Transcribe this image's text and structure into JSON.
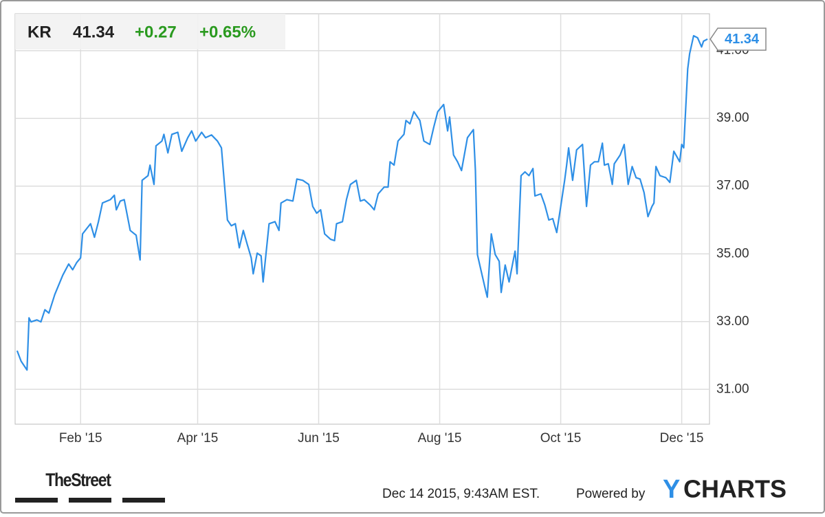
{
  "quote": {
    "symbol": "KR",
    "price": "41.34",
    "change": "+0.27",
    "change_pct": "+0.65%"
  },
  "chart_data": {
    "type": "line",
    "x": [
      0,
      2,
      5,
      6,
      7,
      10,
      12,
      14,
      16,
      19,
      23,
      26,
      28,
      30,
      32,
      33,
      37,
      39,
      41,
      43,
      47,
      49,
      50,
      52,
      54,
      57,
      60,
      62,
      63,
      66,
      67,
      69,
      70,
      73,
      74,
      76,
      78,
      81,
      83,
      86,
      88,
      90,
      93,
      95,
      98,
      101,
      103,
      106,
      108,
      110,
      112,
      114,
      116,
      118,
      119,
      121,
      123,
      124,
      127,
      130,
      132,
      133,
      136,
      139,
      141,
      144,
      147,
      149,
      151,
      153,
      155,
      158,
      160,
      161,
      164,
      166,
      168,
      171,
      173,
      175,
      178,
      180,
      182,
      185,
      187,
      188,
      190,
      192,
      195,
      196,
      198,
      200,
      203,
      205,
      208,
      210,
      212,
      215,
      217,
      218,
      220,
      222,
      224,
      227,
      230,
      231,
      232,
      234,
      236,
      237,
      239,
      241,
      243,
      244,
      246,
      248,
      250,
      251,
      252,
      254,
      256,
      258,
      260,
      261,
      264,
      266,
      268,
      270,
      272,
      274,
      276,
      277,
      278,
      280,
      282,
      285,
      287,
      289,
      291,
      293,
      295,
      296,
      298,
      300,
      301,
      304,
      306,
      308,
      310,
      312,
      314,
      316,
      318,
      320,
      321,
      322,
      324,
      327,
      329,
      331,
      334,
      335,
      336,
      338,
      339,
      341,
      343,
      345,
      346,
      348
    ],
    "values": [
      32.14,
      31.83,
      31.57,
      33.11,
      32.99,
      33.05,
      32.99,
      33.35,
      33.25,
      33.8,
      34.37,
      34.7,
      34.53,
      34.74,
      34.88,
      35.59,
      35.89,
      35.49,
      35.95,
      36.5,
      36.6,
      36.73,
      36.3,
      36.56,
      36.6,
      35.69,
      35.55,
      34.82,
      37.17,
      37.31,
      37.62,
      37.05,
      38.19,
      38.33,
      38.53,
      37.98,
      38.53,
      38.59,
      38.03,
      38.43,
      38.63,
      38.33,
      38.59,
      38.43,
      38.51,
      38.33,
      38.13,
      36.0,
      35.83,
      35.89,
      35.18,
      35.69,
      35.28,
      34.88,
      34.41,
      35.02,
      34.94,
      34.17,
      35.89,
      35.95,
      35.69,
      36.5,
      36.6,
      36.56,
      37.21,
      37.17,
      37.05,
      36.4,
      36.2,
      36.3,
      35.59,
      35.43,
      35.39,
      35.89,
      35.95,
      36.6,
      37.05,
      37.17,
      36.56,
      36.6,
      36.44,
      36.3,
      36.77,
      36.97,
      36.97,
      37.72,
      37.62,
      38.33,
      38.53,
      38.94,
      38.84,
      39.2,
      38.94,
      38.33,
      38.23,
      38.74,
      39.2,
      39.41,
      38.63,
      39.04,
      37.92,
      37.72,
      37.46,
      38.43,
      38.67,
      37.46,
      34.98,
      34.47,
      33.96,
      33.72,
      35.59,
      34.98,
      34.78,
      33.86,
      34.67,
      34.17,
      34.78,
      35.08,
      34.41,
      37.31,
      37.42,
      37.31,
      37.52,
      36.71,
      36.77,
      36.44,
      36.0,
      36.04,
      35.63,
      36.4,
      37.17,
      37.62,
      38.13,
      37.17,
      38.07,
      38.23,
      36.4,
      37.62,
      37.72,
      37.72,
      38.27,
      37.62,
      37.66,
      37.05,
      37.66,
      37.92,
      38.23,
      37.05,
      37.58,
      37.25,
      37.21,
      36.81,
      36.1,
      36.4,
      36.5,
      37.58,
      37.31,
      37.25,
      37.11,
      38.03,
      37.72,
      38.23,
      38.13,
      40.46,
      40.91,
      41.44,
      41.38,
      41.11,
      41.28,
      41.34
    ],
    "color": "#2e8fe6",
    "xlim": [
      -1,
      349
    ],
    "xticks": [
      {
        "value": 32,
        "label": "Feb '15"
      },
      {
        "value": 91,
        "label": "Apr '15"
      },
      {
        "value": 152,
        "label": "Jun '15"
      },
      {
        "value": 213,
        "label": "Aug '15"
      },
      {
        "value": 274,
        "label": "Oct '15"
      },
      {
        "value": 335,
        "label": "Dec '15"
      }
    ],
    "ylim": [
      29.97,
      42.09
    ],
    "yticks": [
      {
        "value": 31,
        "label": "31.00"
      },
      {
        "value": 33,
        "label": "33.00"
      },
      {
        "value": 35,
        "label": "35.00"
      },
      {
        "value": 37,
        "label": "37.00"
      },
      {
        "value": 39,
        "label": "39.00"
      },
      {
        "value": 41,
        "label": "41.00"
      }
    ],
    "grid": true
  },
  "footer": {
    "source_logo": "TheStreet",
    "timestamp": "Dec 14 2015, 9:43AM EST.",
    "powered_by": "Powered by",
    "brand_y": "Y",
    "brand_rest": "CHARTS"
  }
}
